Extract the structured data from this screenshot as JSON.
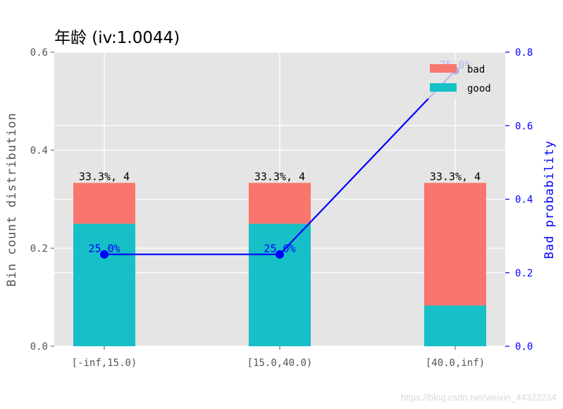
{
  "chart_data": {
    "type": "bar",
    "title": "年龄  (iv:1.0044)",
    "categories": [
      "[-inf,15.0)",
      "[15.0,40.0)",
      "[40.0,inf)"
    ],
    "series": [
      {
        "name": "good",
        "values": [
          0.25,
          0.25,
          0.0833
        ],
        "color": "#17bfc6"
      },
      {
        "name": "bad",
        "values": [
          0.0833,
          0.0833,
          0.25
        ],
        "color": "#f8766d"
      }
    ],
    "bar_labels": [
      "33.3%, 4",
      "33.3%, 4",
      "33.3%, 4"
    ],
    "line": {
      "values": [
        0.25,
        0.25,
        0.75
      ],
      "labels": [
        "25.0%",
        "25.0%",
        "75.0%"
      ],
      "color": "#0000ff"
    },
    "ylabel": "Bin count distribution",
    "ylabel_right": "Bad probability",
    "ylim": [
      0,
      0.6
    ],
    "ylim_right": [
      0,
      0.8
    ],
    "yticks": [
      "0.0",
      "0.2",
      "0.4",
      "0.6"
    ],
    "yticks_right": [
      "0.0",
      "0.2",
      "0.4",
      "0.6",
      "0.8"
    ],
    "grid": true,
    "legend_position": "top-right",
    "background": "#e5e5e5"
  },
  "watermark": "https://blog.csdn.net/weixin_44322234"
}
